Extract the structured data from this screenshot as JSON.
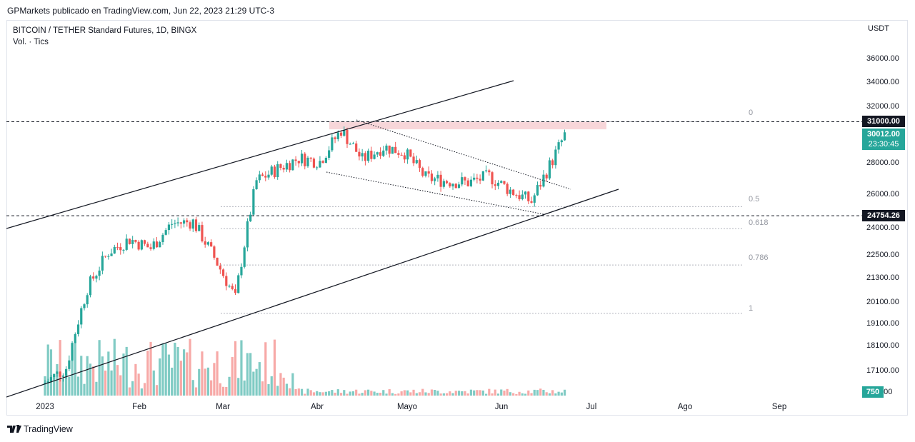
{
  "header": {
    "publisher": "GPMarkets publicado en TradingView.com, Jun 22, 2023 21:29 UTC-3"
  },
  "legend": {
    "symbol": "BITCOIN / TETHER Standard Futures, 1D, BINGX",
    "volume": "Vol. · Tics"
  },
  "axis": {
    "unit": "USDT",
    "y_ticks": [
      "36000.00",
      "34000.00",
      "32000.00",
      "28000.00",
      "26000.00",
      "24000.00",
      "22500.00",
      "21300.00",
      "20100.00",
      "19100.00",
      "18100.00",
      "17100.00",
      "0.00"
    ],
    "x_ticks": [
      "2023",
      "Feb",
      "Mar",
      "Abr",
      "Mayo",
      "Jun",
      "Jul",
      "Ago",
      "Sep"
    ]
  },
  "badges": {
    "resistance": "31000.00",
    "last_price": "30012.00",
    "countdown": "23:30:45",
    "support": "24754.26",
    "volume": "750"
  },
  "fib_labels": [
    "0",
    "0.5",
    "0.618",
    "0.786",
    "1"
  ],
  "footer": {
    "brand": "TradingView"
  },
  "colors": {
    "up": "#26a69a",
    "down": "#ef5350",
    "up_vol": "#80cbc4",
    "down_vol": "#f7a9a7",
    "zone": "#f7d6d9",
    "line": "#131722"
  },
  "chart_data": {
    "type": "candlestick",
    "title": "BITCOIN / TETHER Standard Futures, 1D, BINGX",
    "y_unit": "USDT",
    "y_scale": "log",
    "x_range": [
      "2023-01-01",
      "2023-09-30"
    ],
    "levels": [
      {
        "label": "resistance",
        "value": 31000
      },
      {
        "label": "support",
        "value": 24754.26
      }
    ],
    "fib_retracement": [
      {
        "level": "0",
        "price": 31000
      },
      {
        "level": "0.5",
        "price": 25300
      },
      {
        "level": "0.618",
        "price": 24000
      },
      {
        "level": "0.786",
        "price": 22000
      },
      {
        "level": "1",
        "price": 19600
      }
    ],
    "resistance_zone": [
      30600,
      31000
    ],
    "last_close": 30012,
    "series": [
      {
        "name": "Close",
        "dates": [
          "2023-01-01",
          "2023-01-08",
          "2023-01-15",
          "2023-01-22",
          "2023-01-29",
          "2023-02-05",
          "2023-02-12",
          "2023-02-19",
          "2023-02-26",
          "2023-03-05",
          "2023-03-12",
          "2023-03-19",
          "2023-03-26",
          "2023-04-02",
          "2023-04-09",
          "2023-04-16",
          "2023-04-23",
          "2023-04-30",
          "2023-05-07",
          "2023-05-14",
          "2023-05-21",
          "2023-05-28",
          "2023-06-04",
          "2023-06-11",
          "2023-06-18",
          "2023-06-22"
        ],
        "values": [
          16600,
          17200,
          20800,
          22700,
          23400,
          22900,
          24300,
          24400,
          22400,
          20300,
          26900,
          27700,
          28400,
          28200,
          30400,
          28300,
          29200,
          28800,
          27100,
          26900,
          26800,
          27200,
          26300,
          25600,
          28300,
          30012
        ]
      }
    ]
  }
}
